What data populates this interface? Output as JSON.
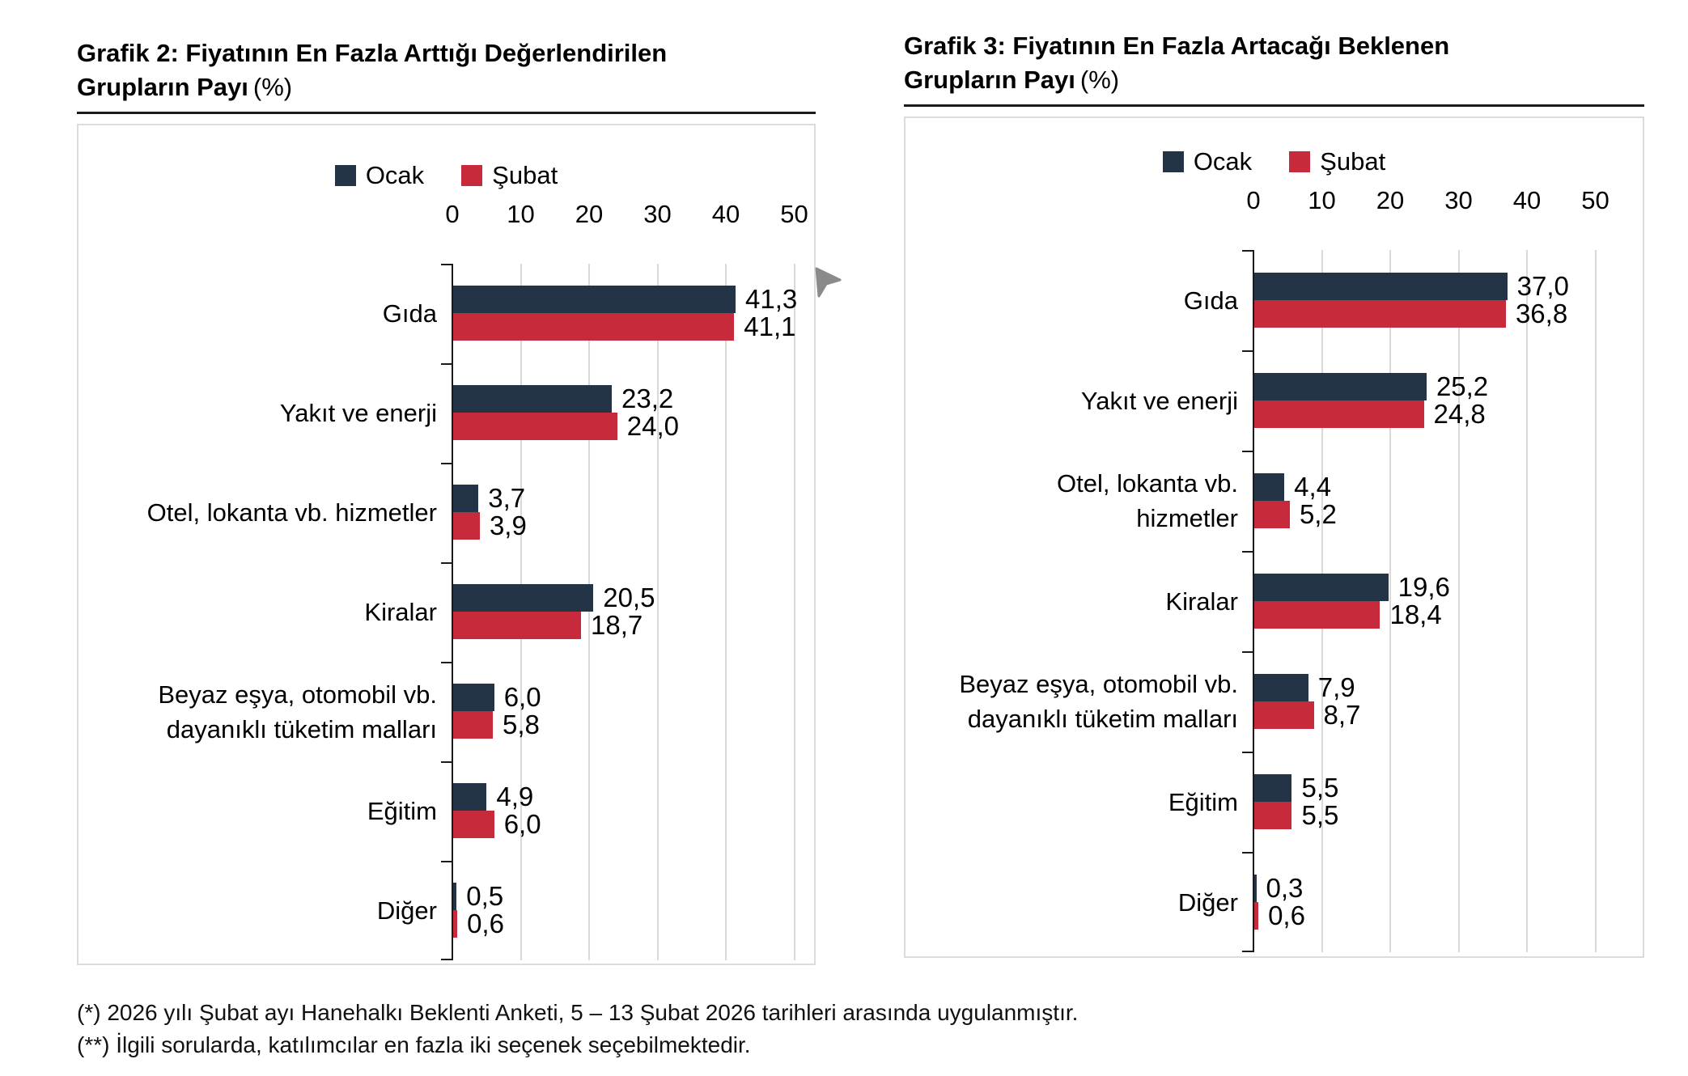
{
  "colors": {
    "ocak": "#243447",
    "subat": "#c62a3b",
    "grid": "#d9d9d9",
    "axis": "#1a1a1a",
    "panel_border": "#dcdcdc",
    "cursor": "#8a8a8a"
  },
  "footnotes": [
    "(*) 2026 yılı Şubat ayı Hanehalkı Beklenti Anketi, 5 – 13 Şubat 2026 tarihleri arasında uygulanmıştır.",
    "(**) İlgili sorularda, katılımcılar en fazla iki seçenek seçebilmektedir."
  ],
  "chart_data": [
    {
      "id": "grafik2",
      "type": "bar",
      "orientation": "horizontal",
      "title": "Grafik 2: Fiyatının En Fazla Arttığı Değerlendirilen Grupların Payı (%)",
      "title_line1": "Grafik 2: Fiyatının En Fazla Arttığı Değerlendirilen",
      "title_line2": "Grupların Payı",
      "title_suffix": "(%)",
      "legend": [
        "Ocak",
        "Şubat"
      ],
      "legend_position": "top",
      "x_ticks": [
        0,
        10,
        20,
        30,
        40,
        50
      ],
      "xlim": [
        0,
        50
      ],
      "grid": true,
      "categories": [
        [
          "Gıda"
        ],
        [
          "Yakıt ve enerji"
        ],
        [
          "Otel, lokanta vb. hizmetler"
        ],
        [
          "Kiralar"
        ],
        [
          "Beyaz eşya, otomobil vb.",
          "dayanıklı tüketim malları"
        ],
        [
          "Eğitim"
        ],
        [
          "Diğer"
        ]
      ],
      "series": [
        {
          "name": "Ocak",
          "values": [
            41.3,
            23.2,
            3.7,
            20.5,
            6.0,
            4.9,
            0.5
          ],
          "labels": [
            "41,3",
            "23,2",
            "3,7",
            "20,5",
            "6,0",
            "4,9",
            "0,5"
          ]
        },
        {
          "name": "Şubat",
          "values": [
            41.1,
            24.0,
            3.9,
            18.7,
            5.8,
            6.0,
            0.6
          ],
          "labels": [
            "41,1",
            "24,0",
            "3,9",
            "18,7",
            "5,8",
            "6,0",
            "0,6"
          ]
        }
      ]
    },
    {
      "id": "grafik3",
      "type": "bar",
      "orientation": "horizontal",
      "title": "Grafik 3: Fiyatının En Fazla Artacağı Beklenen Grupların Payı (%)",
      "title_line1": "Grafik 3: Fiyatının En Fazla Artacağı Beklenen",
      "title_line2": "Grupların Payı",
      "title_suffix": "(%)",
      "legend": [
        "Ocak",
        "Şubat"
      ],
      "legend_position": "top",
      "x_ticks": [
        0,
        10,
        20,
        30,
        40,
        50
      ],
      "xlim": [
        0,
        50
      ],
      "grid": true,
      "categories": [
        [
          "Gıda"
        ],
        [
          "Yakıt ve enerji"
        ],
        [
          "Otel, lokanta vb.",
          "hizmetler"
        ],
        [
          "Kiralar"
        ],
        [
          "Beyaz eşya, otomobil vb.",
          "dayanıklı tüketim malları"
        ],
        [
          "Eğitim"
        ],
        [
          "Diğer"
        ]
      ],
      "series": [
        {
          "name": "Ocak",
          "values": [
            37.0,
            25.2,
            4.4,
            19.6,
            7.9,
            5.5,
            0.3
          ],
          "labels": [
            "37,0",
            "25,2",
            "4,4",
            "19,6",
            "7,9",
            "5,5",
            "0,3"
          ]
        },
        {
          "name": "Şubat",
          "values": [
            36.8,
            24.8,
            5.2,
            18.4,
            8.7,
            5.5,
            0.6
          ],
          "labels": [
            "36,8",
            "24,8",
            "5,2",
            "18,4",
            "8,7",
            "5,5",
            "0,6"
          ]
        }
      ]
    }
  ]
}
